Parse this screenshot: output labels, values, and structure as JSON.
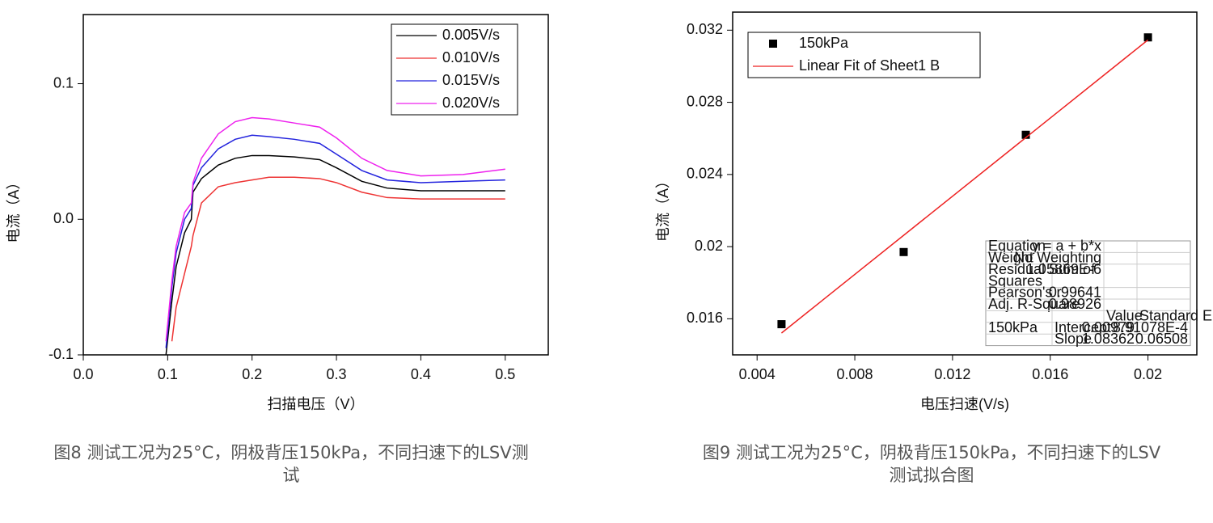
{
  "chart_data": [
    {
      "type": "line",
      "caption": "图8 测试工况为25°C，阴极背压150kPa，不同扫速下的LSV测试",
      "x_label": "扫描电压（V）",
      "y_label": "电流（A）",
      "xlim": [
        0,
        0.551
      ],
      "ylim": [
        -0.1,
        0.151
      ],
      "xticks": [
        {
          "value": 0,
          "label": "0.0"
        },
        0.1,
        0.2,
        0.3,
        0.4,
        0.5
      ],
      "yticks": [
        -0.1,
        {
          "value": 0,
          "label": "0.0"
        },
        0.1
      ],
      "legend": "top-right",
      "grid": false,
      "x": [
        0.098,
        0.105,
        0.11,
        0.12,
        0.128,
        0.13,
        0.14,
        0.16,
        0.18,
        0.2,
        0.22,
        0.25,
        0.28,
        0.3,
        0.33,
        0.36,
        0.4,
        0.45,
        0.5
      ],
      "series": [
        {
          "name": "0.005V/s",
          "color": "#000000",
          "values": [
            -0.1,
            -0.06,
            -0.035,
            -0.01,
            0.0,
            0.02,
            0.03,
            0.04,
            0.045,
            0.047,
            0.047,
            0.046,
            0.044,
            0.038,
            0.028,
            0.023,
            0.021,
            0.021,
            0.021
          ]
        },
        {
          "name": "0.010V/s",
          "color": "#ee3333",
          "values": [
            null,
            -0.09,
            -0.065,
            -0.04,
            -0.02,
            -0.012,
            0.012,
            0.024,
            0.027,
            0.029,
            0.031,
            0.031,
            0.03,
            0.027,
            0.02,
            0.016,
            0.015,
            0.015,
            0.015
          ]
        },
        {
          "name": "0.015V/s",
          "color": "#2222dd",
          "values": [
            -0.095,
            -0.05,
            -0.025,
            0.0,
            0.008,
            0.025,
            0.038,
            0.052,
            0.059,
            0.062,
            0.061,
            0.059,
            0.056,
            0.048,
            0.036,
            0.029,
            0.027,
            0.028,
            0.029
          ]
        },
        {
          "name": "0.020V/s",
          "color": "#ee22ee",
          "values": [
            -0.09,
            -0.045,
            -0.02,
            0.005,
            0.012,
            0.027,
            0.045,
            0.063,
            0.072,
            0.075,
            0.074,
            0.071,
            0.068,
            0.06,
            0.045,
            0.036,
            0.032,
            0.033,
            0.037
          ]
        }
      ]
    },
    {
      "type": "scatter",
      "caption": "图9 测试工况为25°C，阴极背压150kPa，不同扫速下的LSV测试拟合图",
      "x_label": "电压扫速(V/s)",
      "y_label": "电流（A）",
      "xlim": [
        0.003,
        0.022
      ],
      "ylim": [
        0.014,
        0.033
      ],
      "xticks": [
        0.004,
        0.008,
        0.012,
        0.016,
        0.02
      ],
      "yticks": [
        0.016,
        0.02,
        0.024,
        0.028,
        0.032
      ],
      "legend": "top-left",
      "grid": false,
      "series": [
        {
          "name": "150kPa",
          "type": "scatter",
          "color": "#000000",
          "x": [
            0.005,
            0.01,
            0.015,
            0.02
          ],
          "values": [
            0.0157,
            0.0197,
            0.0262,
            0.0316
          ]
        },
        {
          "name": "Linear Fit of Sheet1 B",
          "type": "line",
          "color": "#ee2222",
          "x": [
            0.005,
            0.02
          ],
          "values": [
            0.01521,
            0.03146
          ]
        }
      ],
      "fit_table": [
        [
          "Equation",
          "y = a + b*x"
        ],
        [
          "Weight",
          "No Weighting"
        ],
        [
          "Residual Sum of Squares",
          "1.05869E-6"
        ],
        [
          "Pearson's r",
          "0.99641"
        ],
        [
          "Adj. R-Square",
          "0.98926"
        ],
        [
          "Value",
          "Standard Error"
        ],
        [
          "150kPa",
          "Intercept",
          "0.00979",
          "8.91078E-4"
        ],
        [
          "Slope",
          "1.08362",
          "0.06508"
        ]
      ]
    }
  ]
}
